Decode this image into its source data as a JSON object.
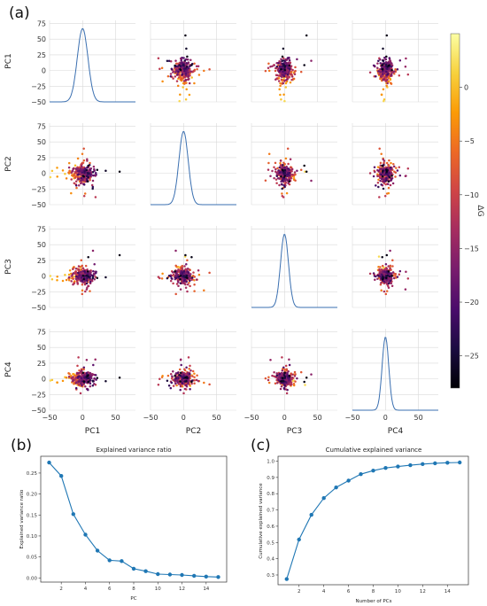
{
  "panel_labels": {
    "a": "(a)",
    "b": "(b)",
    "c": "(c)"
  },
  "chart_data": [
    {
      "type": "scatter",
      "kind": "pairplot",
      "panel": "(a)",
      "variables": [
        "PC1",
        "PC2",
        "PC3",
        "PC4"
      ],
      "axis_range": [
        -50,
        80
      ],
      "x_ticks": [
        "−50",
        "0",
        "50"
      ],
      "y_ticks": [
        "75",
        "50",
        "25",
        "0",
        "−25",
        "−50"
      ],
      "grid": true,
      "diagonal": "kde",
      "colorbar": {
        "label": "ΔG",
        "range": [
          -28,
          5
        ],
        "ticks": [
          "0",
          "−5",
          "−10",
          "−15",
          "−20",
          "−25"
        ],
        "colormap": "inferno",
        "colors": [
          "#000004",
          "#1b0c41",
          "#4a0c6b",
          "#781c6d",
          "#a52c60",
          "#cf4446",
          "#ed6925",
          "#fb9b06",
          "#f7d13d",
          "#fcffa4"
        ]
      },
      "kde_color": "#3a6fb0",
      "point_cloud": {
        "PC1": {
          "center": 0,
          "spread": 8
        },
        "PC2": {
          "center": 0,
          "spread": 7
        },
        "PC3": {
          "center": 0,
          "spread": 6
        },
        "PC4": {
          "center": 0,
          "spread": 5
        }
      }
    },
    {
      "type": "line",
      "panel": "(b)",
      "title": "Explained variance ratio",
      "xlabel": "PC",
      "ylabel": "Explained variance ratio",
      "x": [
        1,
        2,
        3,
        4,
        5,
        6,
        7,
        8,
        9,
        10,
        11,
        12,
        13,
        14,
        15
      ],
      "y": [
        0.275,
        0.243,
        0.152,
        0.103,
        0.065,
        0.042,
        0.04,
        0.022,
        0.016,
        0.009,
        0.008,
        0.007,
        0.005,
        0.003,
        0.002
      ],
      "xlim": [
        0.3,
        15.7
      ],
      "ylim": [
        -0.01,
        0.29
      ],
      "x_ticks": [
        2,
        4,
        6,
        8,
        10,
        12,
        14
      ],
      "y_ticks": [
        0.0,
        0.05,
        0.1,
        0.15,
        0.2,
        0.25
      ],
      "y_tick_labels": [
        "0.00",
        "0.05",
        "0.10",
        "0.15",
        "0.20",
        "0.25"
      ],
      "color": "#1f77b4",
      "grid": false
    },
    {
      "type": "line",
      "panel": "(c)",
      "title": "Cumulative explained variance",
      "xlabel": "Number of PCs",
      "ylabel": "Cumulative explained variance",
      "x": [
        1,
        2,
        3,
        4,
        5,
        6,
        7,
        8,
        9,
        10,
        11,
        12,
        13,
        14,
        15
      ],
      "y": [
        0.275,
        0.518,
        0.67,
        0.773,
        0.838,
        0.88,
        0.92,
        0.942,
        0.958,
        0.967,
        0.975,
        0.982,
        0.987,
        0.99,
        0.992
      ],
      "xlim": [
        0.3,
        15.7
      ],
      "ylim": [
        0.24,
        1.03
      ],
      "x_ticks": [
        2,
        4,
        6,
        8,
        10,
        12,
        14
      ],
      "y_ticks": [
        0.3,
        0.4,
        0.5,
        0.6,
        0.7,
        0.8,
        0.9,
        1.0
      ],
      "y_tick_labels": [
        "0.3",
        "0.4",
        "0.5",
        "0.6",
        "0.7",
        "0.8",
        "0.9",
        "1.0"
      ],
      "color": "#1f77b4",
      "grid": false
    }
  ]
}
